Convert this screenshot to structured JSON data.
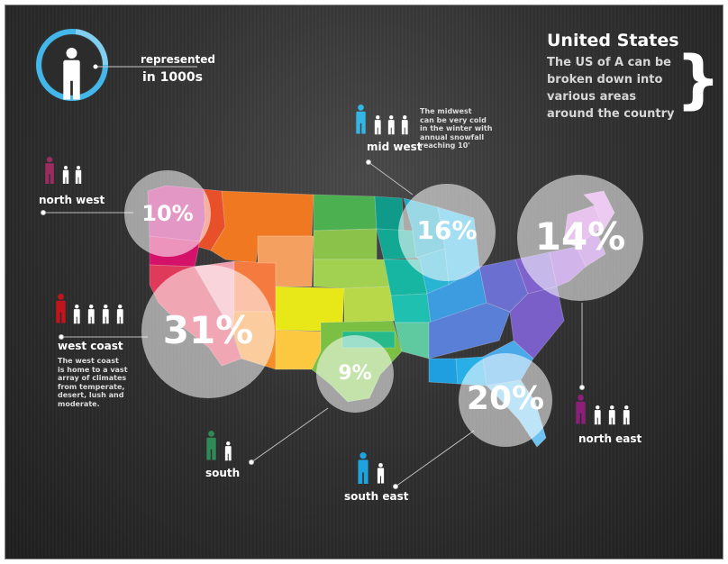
{
  "legend": {
    "label_top": "represented",
    "label_bottom": "in 1000s"
  },
  "header": {
    "title": "United States",
    "subtitle_lines": [
      "The US of A can be",
      "broken down into",
      "various areas",
      "around the country"
    ],
    "brace": "}"
  },
  "regions": {
    "north_west": {
      "name": "north west",
      "percent": "10%",
      "color": "#9b2c5e",
      "figures_white": 2
    },
    "mid_west": {
      "name": "mid west",
      "percent": "16%",
      "color": "#33b5e5",
      "figures_white": 3,
      "description_lines": [
        "The midwest",
        "can be very cold",
        "in the winter with",
        "annual snowfall",
        "reaching 10'"
      ]
    },
    "north_east": {
      "name": "north east",
      "percent": "14%",
      "color": "#8c1f78",
      "figures_white": 3
    },
    "west_coast": {
      "name": "west coast",
      "percent": "31%",
      "color": "#c0151c",
      "figures_white": 4,
      "description_lines": [
        "The west coast",
        "is home to a vast",
        "array of climates",
        "from temperate,",
        "desert, lush and",
        "moderate."
      ]
    },
    "south": {
      "name": "south",
      "percent": "9%",
      "color": "#2e8b57",
      "figures_white": 1
    },
    "south_east": {
      "name": "south east",
      "percent": "20%",
      "color": "#1fa3df",
      "figures_white": 1
    }
  },
  "colors": {
    "legend_ring": "#3fb6ea",
    "bubble": "rgba(255,255,255,0.55)"
  }
}
